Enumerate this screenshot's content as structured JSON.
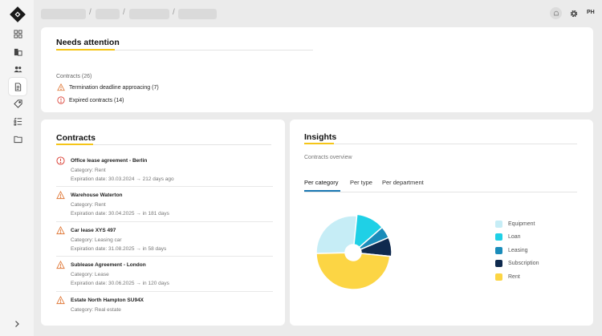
{
  "user": {
    "initials": "PH"
  },
  "needs_attention": {
    "title": "Needs attention",
    "section_label": "Contracts (26)",
    "items": [
      {
        "icon": "warning-icon",
        "text": "Termination deadline approacing (7)"
      },
      {
        "icon": "error-icon",
        "text": "Expired contracts (14)"
      }
    ]
  },
  "contracts": {
    "title": "Contracts",
    "items": [
      {
        "icon": "error-icon",
        "name": "Office lease agreement - Berlin",
        "category": "Category: Rent",
        "expiration": "Expiration date: 30.03.2024 → 212 days ago"
      },
      {
        "icon": "warning-icon",
        "name": "Warehouse Waterton",
        "category": "Category: Rent",
        "expiration": "Expiration date: 30.04.2025 → in 181 days"
      },
      {
        "icon": "warning-icon",
        "name": "Car lease XYS 497",
        "category": "Category: Leasing car",
        "expiration": "Expiration date: 31.08.2025 → in 58 days"
      },
      {
        "icon": "warning-icon",
        "name": "Sublease Agreement - London",
        "category": "Category: Lease",
        "expiration": "Expiration date: 30.06.2025 → in 120 days"
      },
      {
        "icon": "warning-icon",
        "name": "Estate North Hampton SU94X",
        "category": "Category: Real estate",
        "expiration": ""
      }
    ]
  },
  "insights": {
    "title": "Insights",
    "subtitle": "Contracts overview",
    "tabs": [
      "Per category",
      "Per type",
      "Per department"
    ],
    "active_tab": "Per category"
  },
  "chart_data": {
    "type": "pie",
    "subtype": "donut",
    "categories": [
      "Equipment",
      "Loan",
      "Leasing",
      "Subscription",
      "Rent"
    ],
    "values": [
      27,
      12,
      5,
      8,
      48
    ],
    "colors": [
      "#c6edf6",
      "#1fd0e6",
      "#1a8cba",
      "#0f2a4e",
      "#fcd544"
    ],
    "legend_position": "right"
  }
}
